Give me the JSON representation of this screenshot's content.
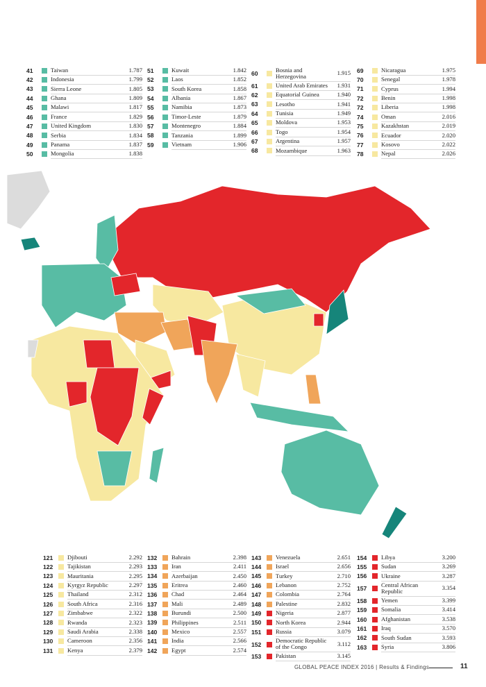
{
  "top_tables": [
    {
      "color": "#58bca4",
      "rows": [
        [
          41,
          "Taiwan",
          "1.787"
        ],
        [
          42,
          "Indonesia",
          "1.799"
        ],
        [
          43,
          "Sierra Leone",
          "1.805"
        ],
        [
          44,
          "Ghana",
          "1.809"
        ],
        [
          45,
          "Malawi",
          "1.817"
        ],
        [
          46,
          "France",
          "1.829"
        ],
        [
          47,
          "United Kingdom",
          "1.830"
        ],
        [
          48,
          "Serbia",
          "1.834"
        ],
        [
          49,
          "Panama",
          "1.837"
        ],
        [
          50,
          "Mongolia",
          "1.838"
        ]
      ]
    },
    {
      "color": "#58bca4",
      "rows": [
        [
          51,
          "Kuwait",
          "1.842"
        ],
        [
          52,
          "Laos",
          "1.852"
        ],
        [
          53,
          "South Korea",
          "1.858"
        ],
        [
          54,
          "Albania",
          "1.867"
        ],
        [
          55,
          "Namibia",
          "1.873"
        ],
        [
          56,
          "Timor-Leste",
          "1.879"
        ],
        [
          57,
          "Montenegro",
          "1.884"
        ],
        [
          58,
          "Tanzania",
          "1.899"
        ],
        [
          59,
          "Vietnam",
          "1.906"
        ]
      ]
    },
    {
      "color": "#f7e8a0",
      "rows": [
        [
          60,
          "Bosnia and Herzegovina",
          "1.915"
        ],
        [
          61,
          "United Arab Emirates",
          "1.931"
        ],
        [
          62,
          "Equatorial Guinea",
          "1.940"
        ],
        [
          63,
          "Lesotho",
          "1.941"
        ],
        [
          64,
          "Tunisia",
          "1.949"
        ],
        [
          65,
          "Moldova",
          "1.953"
        ],
        [
          66,
          "Togo",
          "1.954"
        ],
        [
          67,
          "Argentina",
          "1.957"
        ],
        [
          68,
          "Mozambique",
          "1.963"
        ]
      ]
    },
    {
      "color": "#f7e8a0",
      "rows": [
        [
          69,
          "Nicaragua",
          "1.975"
        ],
        [
          70,
          "Senegal",
          "1.978"
        ],
        [
          71,
          "Cyprus",
          "1.994"
        ],
        [
          72,
          "Benin",
          "1.998"
        ],
        [
          72,
          "Liberia",
          "1.998"
        ],
        [
          74,
          "Oman",
          "2.016"
        ],
        [
          75,
          "Kazakhstan",
          "2.019"
        ],
        [
          76,
          "Ecuador",
          "2.020"
        ],
        [
          77,
          "Kosovo",
          "2.022"
        ],
        [
          78,
          "Nepal",
          "2.026"
        ]
      ]
    }
  ],
  "bottom_tables": [
    {
      "color": "#f7e8a0",
      "rows": [
        [
          121,
          "Djibouti",
          "2.292"
        ],
        [
          122,
          "Tajikistan",
          "2.293"
        ],
        [
          123,
          "Mauritania",
          "2.295"
        ],
        [
          124,
          "Kyrgyz Republic",
          "2.297"
        ],
        [
          125,
          "Thailand",
          "2.312"
        ],
        [
          126,
          "South Africa",
          "2.316"
        ],
        [
          127,
          "Zimbabwe",
          "2.322"
        ],
        [
          128,
          "Rwanda",
          "2.323"
        ],
        [
          129,
          "Saudi Arabia",
          "2.338"
        ],
        [
          130,
          "Cameroon",
          "2.356"
        ],
        [
          131,
          "Kenya",
          "2.379"
        ]
      ]
    },
    {
      "color": "#f0a55a",
      "rows": [
        [
          132,
          "Bahrain",
          "2.398"
        ],
        [
          133,
          "Iran",
          "2.411"
        ],
        [
          134,
          "Azerbaijan",
          "2.450"
        ],
        [
          135,
          "Eritrea",
          "2.460"
        ],
        [
          136,
          "Chad",
          "2.464"
        ],
        [
          137,
          "Mali",
          "2.489"
        ],
        [
          138,
          "Burundi",
          "2.500"
        ],
        [
          139,
          "Philippines",
          "2.511"
        ],
        [
          140,
          "Mexico",
          "2.557"
        ],
        [
          141,
          "India",
          "2.566"
        ],
        [
          142,
          "Egypt",
          "2.574"
        ]
      ]
    },
    {
      "colors": [
        "#f0a55a",
        "#f0a55a",
        "#f0a55a",
        "#f0a55a",
        "#f0a55a",
        "#f0a55a",
        "#e3262b",
        "#e3262b",
        "#e3262b",
        "#e3262b",
        "#e3262b"
      ],
      "rows": [
        [
          143,
          "Venezuela",
          "2.651"
        ],
        [
          144,
          "Israel",
          "2.656"
        ],
        [
          145,
          "Turkey",
          "2.710"
        ],
        [
          146,
          "Lebanon",
          "2.752"
        ],
        [
          147,
          "Colombia",
          "2.764"
        ],
        [
          148,
          "Palestine",
          "2.832"
        ],
        [
          149,
          "Nigeria",
          "2.877"
        ],
        [
          150,
          "North Korea",
          "2.944"
        ],
        [
          151,
          "Russia",
          "3.079"
        ],
        [
          152,
          "Democratic Republic of the Congo",
          "3.112"
        ],
        [
          153,
          "Pakistan",
          "3.145"
        ]
      ]
    },
    {
      "color": "#e3262b",
      "rows": [
        [
          154,
          "Libya",
          "3.200"
        ],
        [
          155,
          "Sudan",
          "3.269"
        ],
        [
          156,
          "Ukraine",
          "3.287"
        ],
        [
          157,
          "Central African Republic",
          "3.354"
        ],
        [
          158,
          "Yemen",
          "3.399"
        ],
        [
          159,
          "Somalia",
          "3.414"
        ],
        [
          160,
          "Afghanistan",
          "3.538"
        ],
        [
          161,
          "Iraq",
          "3.570"
        ],
        [
          162,
          "South Sudan",
          "3.593"
        ],
        [
          163,
          "Syria",
          "3.806"
        ]
      ]
    }
  ],
  "footer": {
    "text": "GLOBAL PEACE INDEX 2016  |  Results & Findings",
    "page": 11
  }
}
